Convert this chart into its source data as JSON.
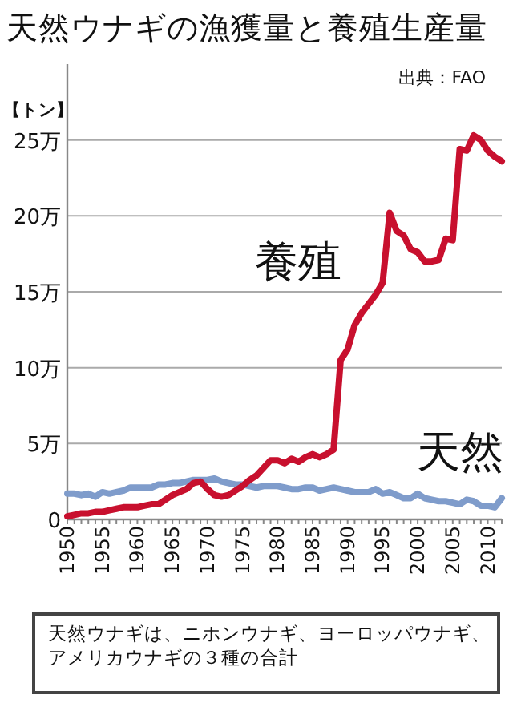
{
  "chart_data": {
    "type": "line",
    "title": "天然ウナギの漁獲量と養殖生産量",
    "subtitle": "出典：FAO",
    "ylabel": "【トン】",
    "x": [
      1950,
      1951,
      1952,
      1953,
      1954,
      1955,
      1956,
      1957,
      1958,
      1959,
      1960,
      1961,
      1962,
      1963,
      1964,
      1965,
      1966,
      1967,
      1968,
      1969,
      1970,
      1971,
      1972,
      1973,
      1974,
      1975,
      1976,
      1977,
      1978,
      1979,
      1980,
      1981,
      1982,
      1983,
      1984,
      1985,
      1986,
      1987,
      1988,
      1989,
      1990,
      1991,
      1992,
      1993,
      1994,
      1995,
      1996,
      1997,
      1998,
      1999,
      2000,
      2001,
      2002,
      2003,
      2004,
      2005,
      2006,
      2007,
      2008,
      2009,
      2010,
      2011,
      2012
    ],
    "series": [
      {
        "name": "養殖",
        "color": "#c8102e",
        "values": [
          0.2,
          0.3,
          0.4,
          0.4,
          0.5,
          0.5,
          0.6,
          0.7,
          0.8,
          0.8,
          0.8,
          0.9,
          1.0,
          1.0,
          1.3,
          1.6,
          1.8,
          2.0,
          2.4,
          2.5,
          2.0,
          1.6,
          1.5,
          1.6,
          1.9,
          2.2,
          2.6,
          2.9,
          3.4,
          3.9,
          3.9,
          3.7,
          4.0,
          3.8,
          4.1,
          4.3,
          4.1,
          4.3,
          4.6,
          10.5,
          11.2,
          12.8,
          13.6,
          14.2,
          14.8,
          15.6,
          20.2,
          19.0,
          18.7,
          17.8,
          17.6,
          17.0,
          17.0,
          17.1,
          18.5,
          18.4,
          24.4,
          24.3,
          25.3,
          25.0,
          24.3,
          23.9,
          23.6
        ]
      },
      {
        "name": "天然",
        "color": "#7f9ccb",
        "values": [
          1.7,
          1.7,
          1.6,
          1.7,
          1.5,
          1.8,
          1.7,
          1.8,
          1.9,
          2.1,
          2.1,
          2.1,
          2.1,
          2.3,
          2.3,
          2.4,
          2.4,
          2.5,
          2.6,
          2.6,
          2.6,
          2.7,
          2.5,
          2.4,
          2.3,
          2.3,
          2.2,
          2.1,
          2.2,
          2.2,
          2.2,
          2.1,
          2.0,
          2.0,
          2.1,
          2.1,
          1.9,
          2.0,
          2.1,
          2.0,
          1.9,
          1.8,
          1.8,
          1.8,
          2.0,
          1.7,
          1.8,
          1.6,
          1.4,
          1.4,
          1.7,
          1.4,
          1.3,
          1.2,
          1.2,
          1.1,
          1.0,
          1.3,
          1.2,
          0.9,
          0.9,
          0.8,
          1.4
        ]
      }
    ],
    "xlim": [
      1950,
      2012
    ],
    "xticks": [
      1950,
      1955,
      1960,
      1965,
      1970,
      1975,
      1980,
      1985,
      1990,
      1995,
      2000,
      2005,
      2010
    ],
    "ylim": [
      0,
      30
    ],
    "yticks": [
      {
        "value": 0,
        "label": "0"
      },
      {
        "value": 5,
        "label": "5万"
      },
      {
        "value": 10,
        "label": "10万"
      },
      {
        "value": 15,
        "label": "15万"
      },
      {
        "value": 20,
        "label": "20万"
      },
      {
        "value": 25,
        "label": "25万"
      }
    ],
    "grid": "y",
    "marker": "none",
    "line_style": "solid",
    "annotations": [
      "天然ウナギは、ニホンウナギ、ヨーロッパウナギ、アメリカウナギの３種の合計"
    ]
  }
}
